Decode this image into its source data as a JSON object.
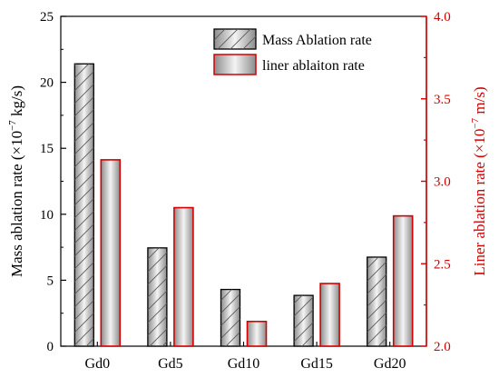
{
  "chart_data": {
    "type": "bar",
    "categories": [
      "Gd0",
      "Gd5",
      "Gd10",
      "Gd15",
      "Gd20"
    ],
    "series": [
      {
        "name": "Mass Ablation rate",
        "axis": "left",
        "values": [
          21.4,
          7.45,
          4.3,
          3.85,
          6.75
        ],
        "edge_color": "#000000",
        "fill": "hatch-gradient-grey"
      },
      {
        "name": "liner ablaiton rate",
        "axis": "right",
        "values": [
          3.13,
          2.84,
          2.15,
          2.38,
          2.79
        ],
        "edge_color": "#d40000",
        "fill": "gradient-grey"
      }
    ],
    "left_axis": {
      "label_main": "Mass ablation rate (×10",
      "label_exp": "−7",
      "label_unit": " kg/s)",
      "ylim": [
        0,
        25
      ],
      "ticks": [
        "0",
        "5",
        "10",
        "15",
        "20",
        "25"
      ],
      "color": "#000000"
    },
    "right_axis": {
      "label_main": "Liner ablation rate (×10",
      "label_exp": "−7",
      "label_unit": " m/s)",
      "ylim": [
        2.0,
        4.0
      ],
      "ticks": [
        "2.0",
        "2.5",
        "3.0",
        "3.5",
        "4.0"
      ],
      "color": "#d40000"
    },
    "legend": {
      "position": "top-right"
    },
    "grid": false
  }
}
